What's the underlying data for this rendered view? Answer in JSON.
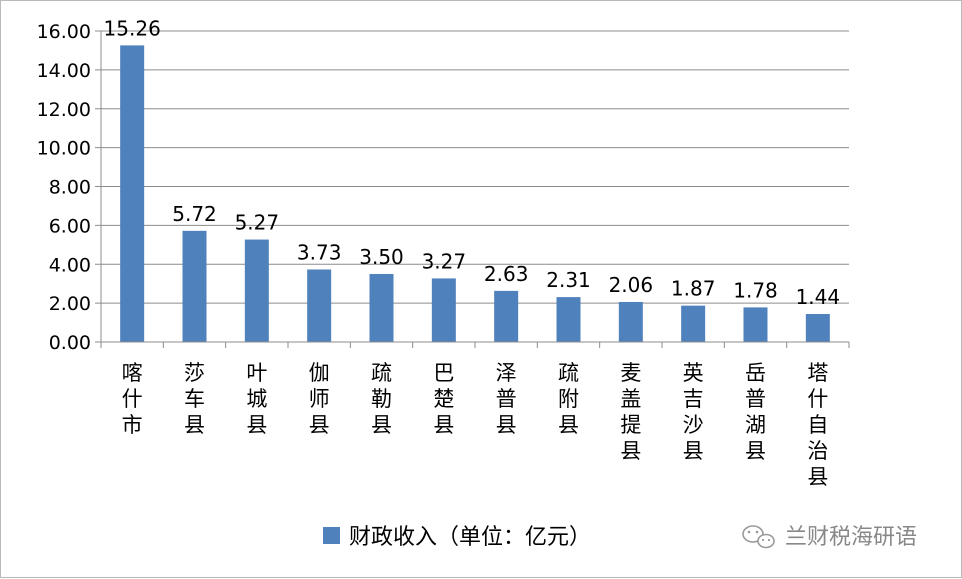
{
  "chart_data": {
    "type": "bar",
    "categories": [
      "喀什市",
      "莎车县",
      "叶城县",
      "伽师县",
      "疏勒县",
      "巴楚县",
      "泽普县",
      "疏附县",
      "麦盖提县",
      "英吉沙县",
      "岳普湖县",
      "塔什自治县"
    ],
    "series": [
      {
        "name": "财政收入（单位：亿元）",
        "values": [
          15.26,
          5.72,
          5.27,
          3.73,
          3.5,
          3.27,
          2.63,
          2.31,
          2.06,
          1.87,
          1.78,
          1.44
        ],
        "labels": [
          "15.26",
          "5.72",
          "5.27",
          "3.73",
          "3.50",
          "3.27",
          "2.63",
          "2.31",
          "2.06",
          "1.87",
          "1.78",
          "1.44"
        ],
        "color": "#4f81bd"
      }
    ],
    "yticks": [
      "0.00",
      "2.00",
      "4.00",
      "6.00",
      "8.00",
      "10.00",
      "12.00",
      "14.00",
      "16.00"
    ],
    "ylim": [
      0,
      16
    ],
    "grid": true,
    "legend": "bottom"
  },
  "watermark": {
    "text": "兰财税海研语",
    "icon": "wechat-icon"
  }
}
